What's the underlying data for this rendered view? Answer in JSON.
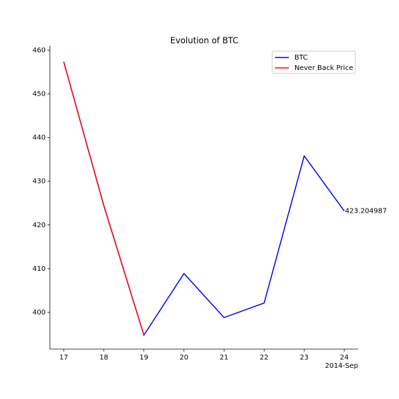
{
  "chart_data": {
    "type": "line",
    "title": "Evolution of BTC",
    "categories": [
      "17",
      "18",
      "19",
      "20",
      "21",
      "22",
      "23",
      "24"
    ],
    "x_offset_label": "2014-Sep",
    "series": [
      {
        "name": "BTC",
        "color": "#0000ff",
        "values": [
          457.33,
          424.44,
          394.8,
          408.9,
          398.82,
          402.15,
          435.79,
          423.204987
        ]
      },
      {
        "name": "Never Back Price",
        "color": "#ff0000",
        "values": [
          457.33,
          424.44,
          394.8,
          null,
          null,
          null,
          null,
          null
        ]
      }
    ],
    "annotations": [
      {
        "text": "423.204987",
        "series": 0,
        "index": 7
      }
    ],
    "ylim": [
      391.6,
      461
    ],
    "yticks": [
      400,
      410,
      420,
      430,
      440,
      450,
      460
    ],
    "legend": "upper right",
    "grid": false
  }
}
